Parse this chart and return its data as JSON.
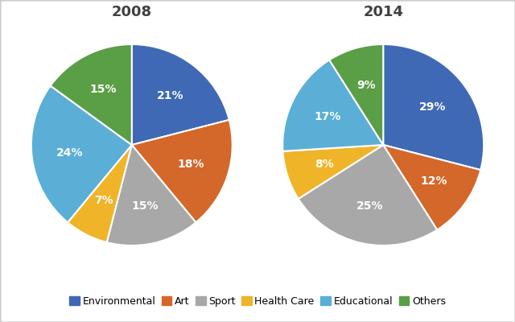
{
  "title_2008": "2008",
  "title_2014": "2014",
  "categories": [
    "Environmental",
    "Art",
    "Sport",
    "Health Care",
    "Educational",
    "Others"
  ],
  "colors": [
    "#3f69b5",
    "#d4672a",
    "#a8a8a8",
    "#f0b429",
    "#5bafd6",
    "#5a9e45"
  ],
  "values_2008": [
    21,
    18,
    15,
    7,
    24,
    15
  ],
  "values_2014": [
    29,
    12,
    25,
    8,
    17,
    9
  ],
  "labels_2008": [
    "21%",
    "18%",
    "15%",
    "7%",
    "24%",
    "15%"
  ],
  "labels_2014": [
    "29%",
    "12%",
    "25%",
    "8%",
    "17%",
    "9%"
  ],
  "startangle_2008": 90,
  "startangle_2014": 90,
  "title_fontsize": 13,
  "label_fontsize": 10,
  "legend_fontsize": 9,
  "background_color": "#ffffff",
  "text_color": "#404040",
  "border_color": "#cccccc"
}
